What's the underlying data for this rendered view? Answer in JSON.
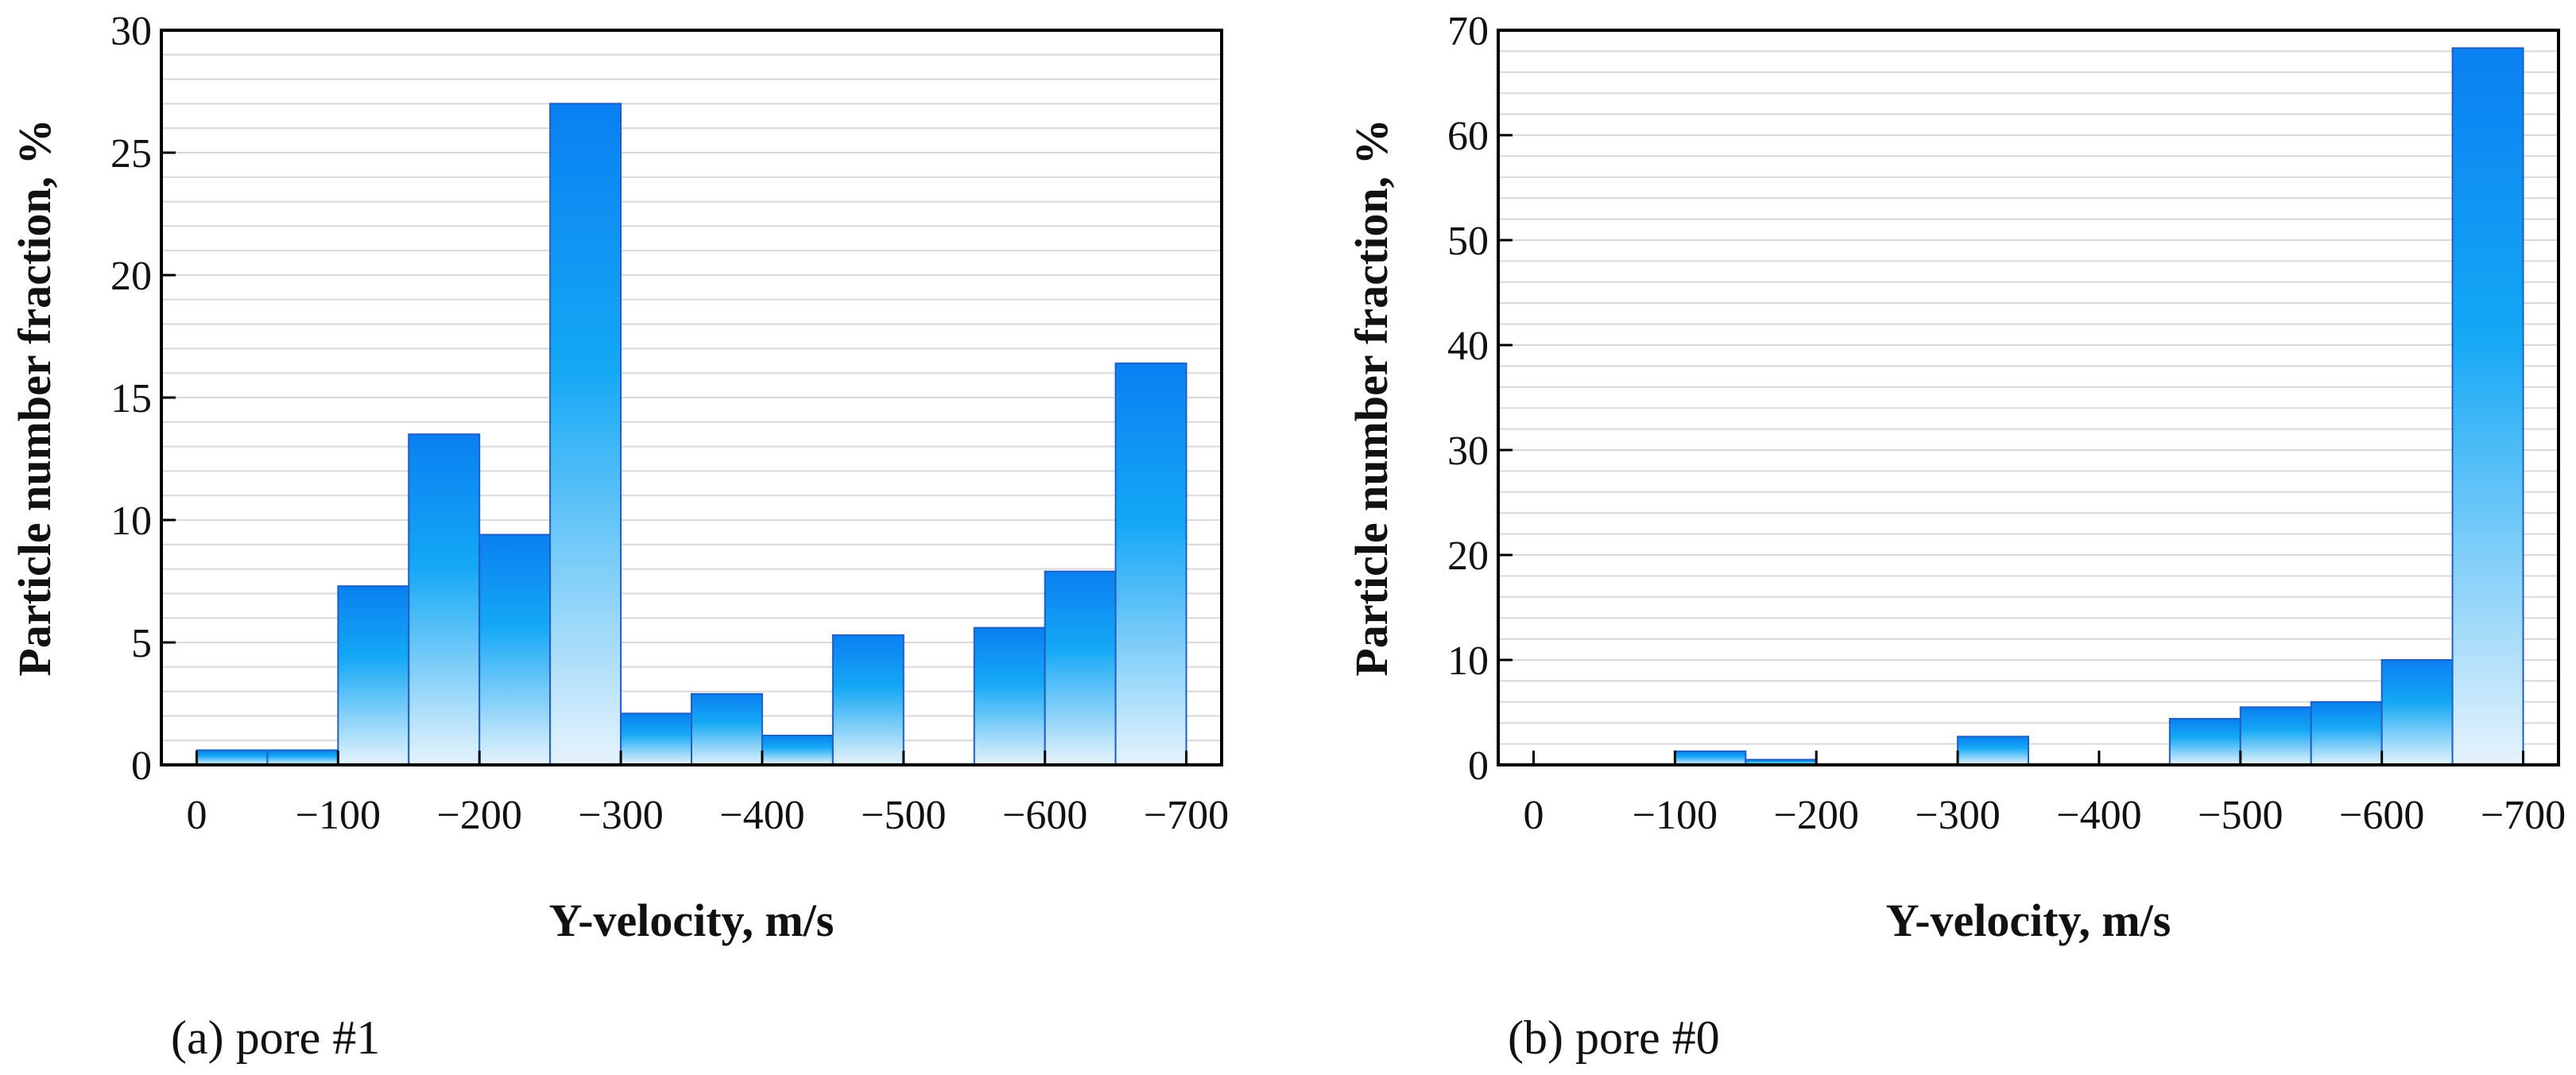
{
  "chart_data": [
    {
      "type": "bar",
      "caption": "(a) pore #1",
      "xlabel": "Y-velocity, m/s",
      "ylabel": "Particle number fraction, %",
      "xlim": [
        25,
        -725
      ],
      "ylim": [
        0,
        30
      ],
      "x_ticks": [
        0,
        -100,
        -200,
        -300,
        -400,
        -500,
        -600,
        -700
      ],
      "x_tick_labels": [
        "0",
        "−100",
        "−200",
        "−300",
        "−400",
        "−500",
        "−600",
        "−700"
      ],
      "y_ticks": [
        0,
        5,
        10,
        15,
        20,
        25,
        30
      ],
      "y_tick_labels": [
        "0",
        "5",
        "10",
        "15",
        "20",
        "25",
        "30"
      ],
      "y_minor_step": 1,
      "grid": "horizontal",
      "bin_width": 50,
      "bin_edges": [
        0,
        -50,
        -100,
        -150,
        -200,
        -250,
        -300,
        -350,
        -400,
        -450,
        -500,
        -550,
        -600,
        -650,
        -700
      ],
      "values": [
        0.6,
        0.6,
        7.3,
        13.5,
        9.4,
        27.0,
        2.1,
        2.9,
        1.2,
        5.3,
        0,
        5.6,
        7.9,
        16.4
      ]
    },
    {
      "type": "bar",
      "caption": "(b) pore #0",
      "xlabel": "Y-velocity, m/s",
      "ylabel": "Particle number fraction, %",
      "xlim": [
        25,
        -725
      ],
      "ylim": [
        0,
        70
      ],
      "x_ticks": [
        0,
        -100,
        -200,
        -300,
        -400,
        -500,
        -600,
        -700
      ],
      "x_tick_labels": [
        "0",
        "−100",
        "−200",
        "−300",
        "−400",
        "−500",
        "−600",
        "−700"
      ],
      "y_ticks": [
        0,
        10,
        20,
        30,
        40,
        50,
        60,
        70
      ],
      "y_tick_labels": [
        "0",
        "10",
        "20",
        "30",
        "40",
        "50",
        "60",
        "70"
      ],
      "y_minor_step": 2,
      "grid": "horizontal",
      "bin_width": 50,
      "bin_edges": [
        0,
        -50,
        -100,
        -150,
        -200,
        -250,
        -300,
        -350,
        -400,
        -450,
        -500,
        -550,
        -600,
        -650,
        -700
      ],
      "values": [
        0,
        0,
        1.3,
        0.5,
        0,
        0,
        2.7,
        0,
        0,
        4.4,
        5.5,
        6.0,
        10.0,
        68.3
      ]
    }
  ],
  "colors": {
    "bar_top": "#0a80f2",
    "bar_mid": "#14a8f5",
    "bar_bottom": "#e6f3fc",
    "bar_edge": "#1f5fc4",
    "grid": "#d9d9d9",
    "axis": "#000000"
  }
}
